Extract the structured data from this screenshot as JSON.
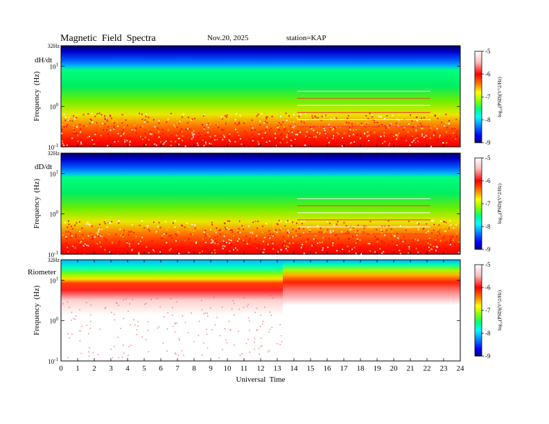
{
  "header": {
    "title": "Magnetic  Field  Spectra",
    "date": "Nov.20, 2025",
    "station": "station=KAP"
  },
  "chart_data": {
    "type": "heatmap",
    "title": "Magnetic  Field  Spectra",
    "xlabel": "Universal  Time",
    "xlim": [
      0,
      24
    ],
    "x_ticks": [
      "0",
      "1",
      "2",
      "3",
      "4",
      "5",
      "6",
      "7",
      "8",
      "9",
      "10",
      "11",
      "12",
      "13",
      "14",
      "15",
      "16",
      "17",
      "18",
      "19",
      "20",
      "21",
      "22",
      "23",
      "24"
    ],
    "log_y": true,
    "colorbar": {
      "label": "log10(PSD)(V^2/Hz)",
      "label_display": "log₁₀(PSD)(V^2/Hz)",
      "range": [
        -9,
        -5
      ],
      "ticks": [
        "-5",
        "-6",
        "-7",
        "-8",
        "-9"
      ],
      "colormap": [
        "#000000",
        "#000088",
        "#0000ff",
        "#0080ff",
        "#00ffff",
        "#00ff80",
        "#00ff00",
        "#c8ff00",
        "#ffff00",
        "#ff8000",
        "#ff0000",
        "#ffbbbb",
        "#ffffff"
      ]
    },
    "panels": [
      {
        "name": "dH/dt",
        "ylabel": "Frequency  (Hz)",
        "y_top_label": "32Hz",
        "y_tick_labels": [
          {
            "base": "10",
            "exp": "1"
          },
          {
            "base": "10",
            "exp": "0"
          },
          {
            "base": "10",
            "exp": "-1"
          }
        ],
        "ylim_hz": [
          0.1,
          32
        ]
      },
      {
        "name": "dD/dt",
        "ylabel": "Frequency  (Hz)",
        "y_top_label": "32Hz",
        "y_tick_labels": [
          {
            "base": "10",
            "exp": "1"
          },
          {
            "base": "10",
            "exp": "0"
          },
          {
            "base": "10",
            "exp": "-1"
          }
        ],
        "ylim_hz": [
          0.1,
          32
        ]
      },
      {
        "name": "Riometer",
        "ylabel": "Frequency  (Hz)",
        "y_top_label": "32Hz",
        "y_tick_labels": [
          {
            "base": "10",
            "exp": "1"
          },
          {
            "base": "10",
            "exp": "0"
          },
          {
            "base": "10",
            "exp": "-1"
          }
        ],
        "ylim_hz": [
          0.1,
          32
        ]
      }
    ]
  }
}
